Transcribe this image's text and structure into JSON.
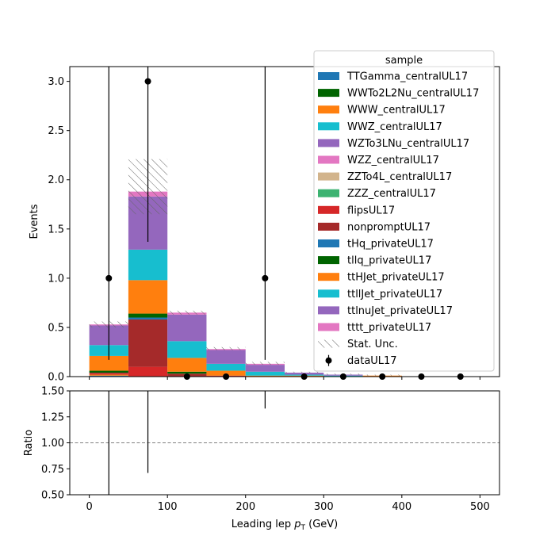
{
  "chart_data": [
    {
      "type": "stacked-histogram",
      "ylabel": "Events",
      "xlim": [
        -25,
        525
      ],
      "ylim": [
        0,
        3.15
      ],
      "yticks": [
        0.0,
        0.5,
        1.0,
        1.5,
        2.0,
        2.5,
        3.0
      ],
      "ytick_labels": [
        "0.0",
        "0.5",
        "1.0",
        "1.5",
        "2.0",
        "2.5",
        "3.0"
      ],
      "bin_edges": [
        0,
        50,
        100,
        150,
        200,
        250,
        300,
        350,
        400,
        450,
        500
      ],
      "legend": {
        "title": "sample",
        "placement": "top-right"
      },
      "series": [
        {
          "name": "TTGamma_centralUL17",
          "color": "#1f77b4",
          "values": [
            0.01,
            0.0,
            0.0,
            0.0,
            0.0,
            0.0,
            0.0,
            0.0,
            0.0,
            0.0
          ]
        },
        {
          "name": "WWTo2L2Nu_centralUL17",
          "color": "#006400",
          "values": [
            0.0,
            0.0,
            0.0,
            0.0,
            0.0,
            0.0,
            0.0,
            0.0,
            0.0,
            0.0
          ]
        },
        {
          "name": "WWW_centralUL17",
          "color": "#ff7f0e",
          "values": [
            0.01,
            0.0,
            0.0,
            0.0,
            0.0,
            0.0,
            0.0,
            0.0,
            0.0,
            0.0
          ]
        },
        {
          "name": "WWZ_centralUL17",
          "color": "#17becf",
          "values": [
            0.0,
            0.0,
            0.0,
            0.0,
            0.0,
            0.0,
            0.0,
            0.0,
            0.0,
            0.0
          ]
        },
        {
          "name": "WZTo3LNu_centralUL17",
          "color": "#9467bd",
          "values": [
            0.0,
            0.0,
            0.0,
            0.0,
            0.0,
            0.0,
            0.0,
            0.0,
            0.0,
            0.0
          ]
        },
        {
          "name": "WZZ_centralUL17",
          "color": "#e377c2",
          "values": [
            0.0,
            0.0,
            0.0,
            0.0,
            0.0,
            0.0,
            0.0,
            0.0,
            0.0,
            0.0
          ]
        },
        {
          "name": "ZZTo4L_centralUL17",
          "color": "#d2b48c",
          "values": [
            0.0,
            0.0,
            0.0,
            0.0,
            0.0,
            0.0,
            0.0,
            0.0,
            0.0,
            0.0
          ]
        },
        {
          "name": "ZZZ_centralUL17",
          "color": "#3cb371",
          "values": [
            0.0,
            0.0,
            0.0,
            0.0,
            0.0,
            0.0,
            0.0,
            0.0,
            0.0,
            0.0
          ]
        },
        {
          "name": "flipsUL17",
          "color": "#d62728",
          "values": [
            0.01,
            0.1,
            0.0,
            0.01,
            0.0,
            0.0,
            0.0,
            0.0,
            0.0,
            0.0
          ]
        },
        {
          "name": "nonpromptUL17",
          "color": "#a52a2a",
          "values": [
            0.01,
            0.48,
            0.03,
            0.0,
            0.0,
            0.0,
            0.0,
            0.0,
            0.0,
            0.0
          ]
        },
        {
          "name": "tHq_privateUL17",
          "color": "#1f77b4",
          "values": [
            0.0,
            0.02,
            0.0,
            0.0,
            0.0,
            0.0,
            0.0,
            0.0,
            0.0,
            0.0
          ]
        },
        {
          "name": "tllq_privateUL17",
          "color": "#006400",
          "values": [
            0.02,
            0.04,
            0.02,
            0.0,
            0.0,
            0.0,
            0.0,
            0.0,
            0.0,
            0.0
          ]
        },
        {
          "name": "ttHJet_privateUL17",
          "color": "#ff7f0e",
          "values": [
            0.15,
            0.34,
            0.14,
            0.05,
            0.01,
            0.01,
            0.0,
            0.01,
            0.0,
            0.0
          ]
        },
        {
          "name": "ttllJet_privateUL17",
          "color": "#17becf",
          "values": [
            0.11,
            0.31,
            0.17,
            0.07,
            0.04,
            0.01,
            0.01,
            0.0,
            0.0,
            0.0
          ]
        },
        {
          "name": "ttlnuJet_privateUL17",
          "color": "#9467bd",
          "values": [
            0.2,
            0.54,
            0.27,
            0.14,
            0.07,
            0.02,
            0.01,
            0.0,
            0.0,
            0.0
          ]
        },
        {
          "name": "tttt_privateUL17",
          "color": "#e377c2",
          "values": [
            0.01,
            0.05,
            0.02,
            0.01,
            0.01,
            0.0,
            0.0,
            0.0,
            0.0,
            0.0
          ]
        }
      ],
      "stat_unc": {
        "name": "Stat. Unc.",
        "up": [
          0.56,
          2.21,
          0.67,
          0.3,
          0.15,
          0.05,
          0.03,
          0.02,
          0.0,
          0.0
        ],
        "down": [
          0.5,
          1.65,
          0.63,
          0.27,
          0.12,
          0.04,
          0.02,
          0.01,
          0.0,
          0.0
        ]
      },
      "data": {
        "name": "dataUL17",
        "x": [
          25,
          75,
          125,
          175,
          225,
          275,
          325,
          375,
          425,
          475
        ],
        "y": [
          1,
          3,
          0,
          0,
          1,
          0,
          0,
          0,
          0,
          0
        ],
        "yerr_up": [
          3.3,
          3.6,
          0,
          0,
          3.3,
          0,
          0,
          0,
          0,
          0
        ],
        "yerr_down": [
          0.83,
          1.63,
          0,
          0,
          0.83,
          0,
          0,
          0,
          0,
          0
        ]
      }
    },
    {
      "type": "ratio",
      "xlabel": "Leading lep $p_T$ (GeV)",
      "xlabel_main": "Leading lep ",
      "xlabel_symbol": "p",
      "xlabel_sub": "T",
      "xlabel_unit": " (GeV)",
      "ylabel": "Ratio",
      "xlim": [
        -25,
        525
      ],
      "ylim": [
        0.5,
        1.5
      ],
      "xticks": [
        0,
        100,
        200,
        300,
        400,
        500
      ],
      "xtick_labels": [
        "0",
        "100",
        "200",
        "300",
        "400",
        "500"
      ],
      "yticks": [
        0.5,
        0.75,
        1.0,
        1.25,
        1.5
      ],
      "ytick_labels": [
        "0.50",
        "0.75",
        "1.00",
        "1.25",
        "1.50"
      ],
      "reference_line": 1.0,
      "error_bars": [
        {
          "x": 25,
          "low": 0.5,
          "high": 1.5
        },
        {
          "x": 75,
          "low": 0.71,
          "high": 1.5
        },
        {
          "x": 225,
          "low": 1.33,
          "high": 1.5
        }
      ]
    }
  ]
}
